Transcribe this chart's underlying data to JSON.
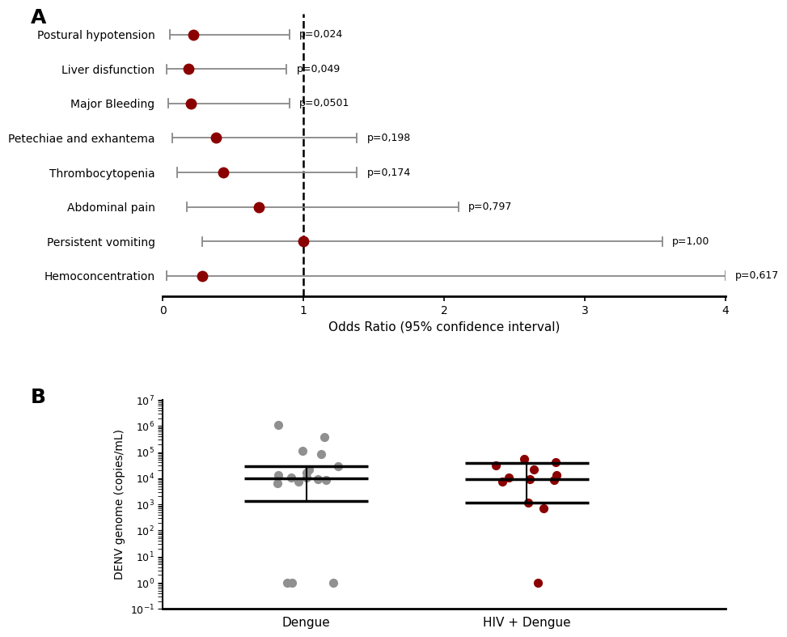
{
  "panel_A": {
    "labels": [
      "Postural hypotension",
      "Liver disfunction",
      "Major Bleeding",
      "Petechiae and exhantema",
      "Thrombocytopenia",
      "Abdominal pain",
      "Persistent vomiting",
      "Hemoconcentration"
    ],
    "or": [
      0.22,
      0.18,
      0.2,
      0.38,
      0.43,
      0.68,
      1.0,
      0.28
    ],
    "ci_low": [
      0.05,
      0.03,
      0.04,
      0.07,
      0.1,
      0.17,
      0.28,
      0.03
    ],
    "ci_high": [
      0.9,
      0.88,
      0.9,
      1.38,
      1.38,
      2.1,
      3.55,
      4.0
    ],
    "pvalues": [
      "p=0,024",
      "p=0,049",
      "p=0,0501",
      "p=0,198",
      "p=0,174",
      "p=0,797",
      "p=1,00",
      "p=0,617"
    ],
    "dot_color": "#8B0000",
    "line_color": "#888888",
    "dashed_line_x": 1.0,
    "xlim": [
      0,
      4
    ],
    "xlabel": "Odds Ratio (95% confidence interval)",
    "title_label": "A"
  },
  "panel_B": {
    "dengue_points": [
      1100000,
      380000,
      110000,
      85000,
      28000,
      22000,
      16000,
      13000,
      11000,
      10500,
      9500,
      8500,
      7500,
      6500,
      1,
      1,
      1
    ],
    "hiv_dengue_points": [
      55000,
      42000,
      32000,
      22000,
      13000,
      11000,
      9500,
      8500,
      7500,
      1200,
      700,
      1
    ],
    "dengue_median": 10000,
    "dengue_q1": 1300,
    "dengue_q3": 28000,
    "hiv_median": 9000,
    "hiv_q1": 1200,
    "hiv_q3": 38000,
    "dengue_color": "#909090",
    "hiv_color": "#8B0000",
    "xlabels": [
      "Dengue",
      "HIV + Dengue"
    ],
    "ylabel": "DENV genome (copies/mL)",
    "ylim_min": 0.1,
    "ylim_max": 10000000.0,
    "title_label": "B"
  }
}
